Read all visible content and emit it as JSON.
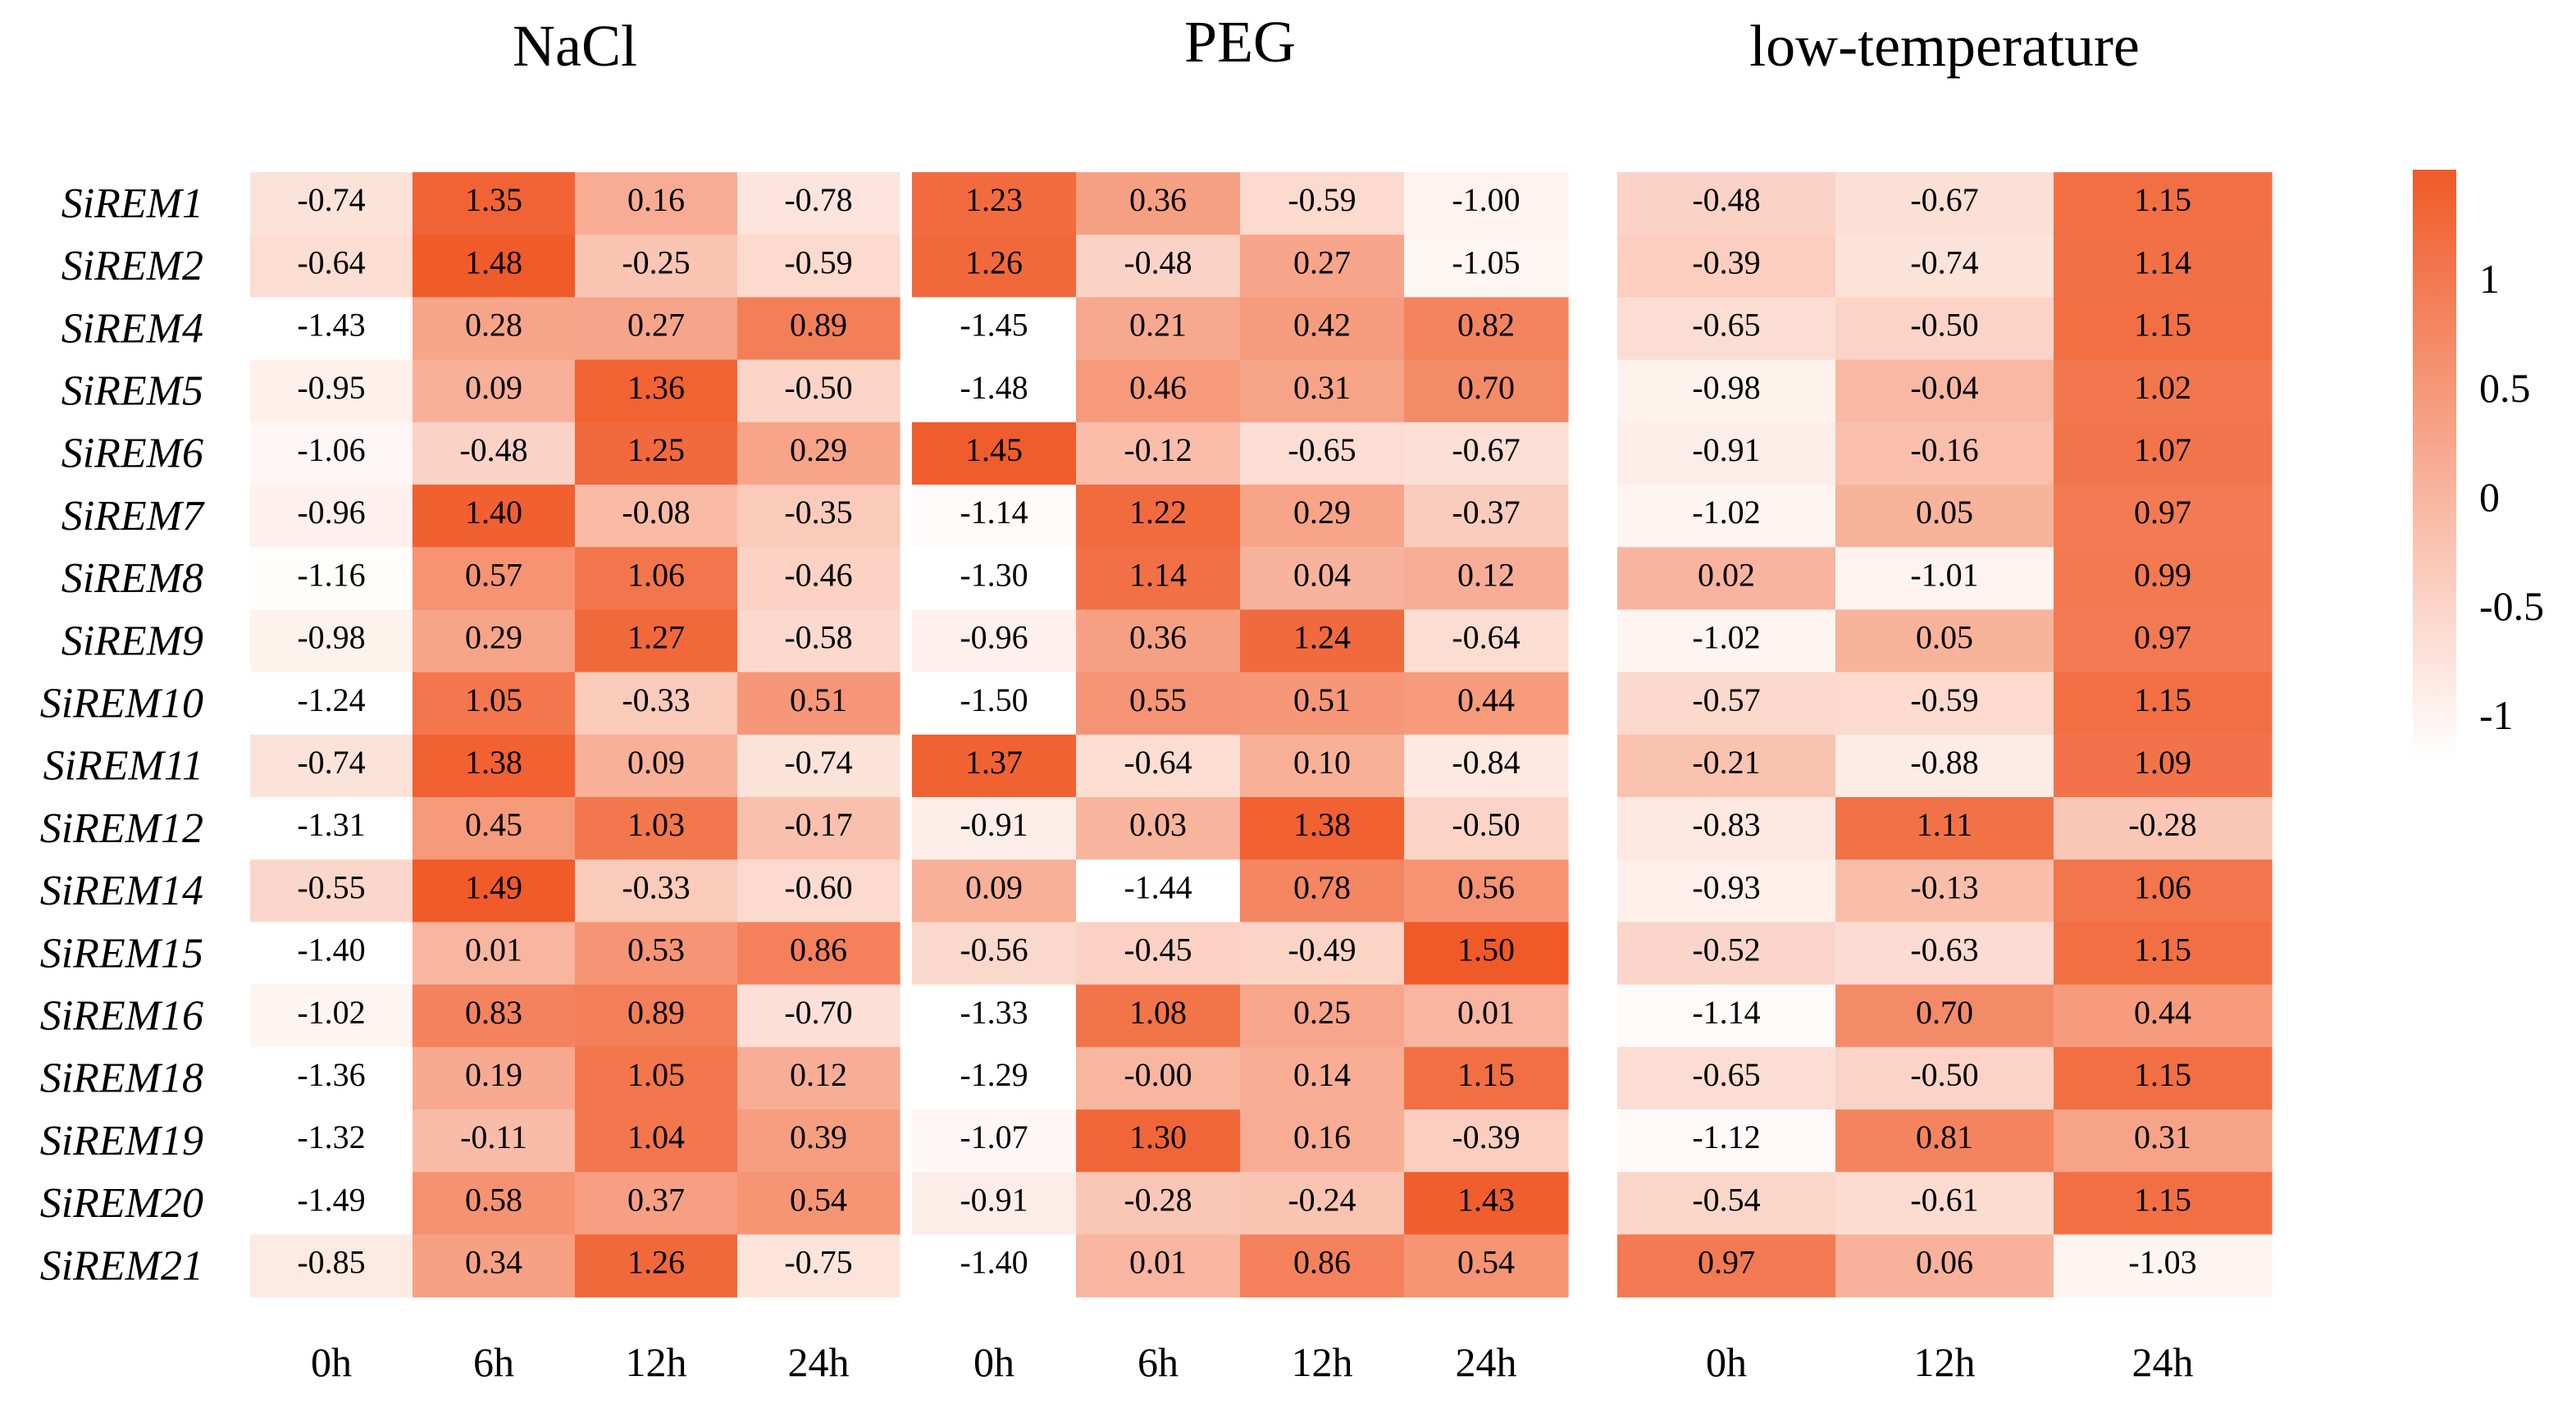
{
  "chart_data": {
    "type": "heatmap",
    "genes": [
      "SiREM1",
      "SiREM2",
      "SiREM4",
      "SiREM5",
      "SiREM6",
      "SiREM7",
      "SiREM8",
      "SiREM9",
      "SiREM10",
      "SiREM11",
      "SiREM12",
      "SiREM14",
      "SiREM15",
      "SiREM16",
      "SiREM18",
      "SiREM19",
      "SiREM20",
      "SiREM21"
    ],
    "panels": [
      {
        "title": "NaCl",
        "columns": [
          "0h",
          "6h",
          "12h",
          "24h"
        ],
        "values": [
          [
            -0.74,
            1.35,
            0.16,
            -0.78
          ],
          [
            -0.64,
            1.48,
            -0.25,
            -0.59
          ],
          [
            -1.43,
            0.28,
            0.27,
            0.89
          ],
          [
            -0.95,
            0.09,
            1.36,
            -0.5
          ],
          [
            -1.06,
            -0.48,
            1.25,
            0.29
          ],
          [
            -0.96,
            1.4,
            -0.08,
            -0.35
          ],
          [
            -1.16,
            0.57,
            1.06,
            -0.46
          ],
          [
            -0.98,
            0.29,
            1.27,
            -0.58
          ],
          [
            -1.24,
            1.05,
            -0.33,
            0.51
          ],
          [
            -0.74,
            1.38,
            0.09,
            -0.74
          ],
          [
            -1.31,
            0.45,
            1.03,
            -0.17
          ],
          [
            -0.55,
            1.49,
            -0.33,
            -0.6
          ],
          [
            -1.4,
            0.01,
            0.53,
            0.86
          ],
          [
            -1.02,
            0.83,
            0.89,
            -0.7
          ],
          [
            -1.36,
            0.19,
            1.05,
            0.12
          ],
          [
            -1.32,
            -0.11,
            1.04,
            0.39
          ],
          [
            -1.49,
            0.58,
            0.37,
            0.54
          ],
          [
            -0.85,
            0.34,
            1.26,
            -0.75
          ]
        ],
        "labels": [
          [
            "-0.74",
            "1.35",
            "0.16",
            "-0.78"
          ],
          [
            "-0.64",
            "1.48",
            "-0.25",
            "-0.59"
          ],
          [
            "-1.43",
            "0.28",
            "0.27",
            "0.89"
          ],
          [
            "-0.95",
            "0.09",
            "1.36",
            "-0.50"
          ],
          [
            "-1.06",
            "-0.48",
            "1.25",
            "0.29"
          ],
          [
            "-0.96",
            "1.40",
            "-0.08",
            "-0.35"
          ],
          [
            "-1.16",
            "0.57",
            "1.06",
            "-0.46"
          ],
          [
            "-0.98",
            "0.29",
            "1.27",
            "-0.58"
          ],
          [
            "-1.24",
            "1.05",
            "-0.33",
            "0.51"
          ],
          [
            "-0.74",
            "1.38",
            "0.09",
            "-0.74"
          ],
          [
            "-1.31",
            "0.45",
            "1.03",
            "-0.17"
          ],
          [
            "-0.55",
            "1.49",
            "-0.33",
            "-0.60"
          ],
          [
            "-1.40",
            "0.01",
            "0.53",
            "0.86"
          ],
          [
            "-1.02",
            "0.83",
            "0.89",
            "-0.70"
          ],
          [
            "-1.36",
            "0.19",
            "1.05",
            "0.12"
          ],
          [
            "-1.32",
            "-0.11",
            "1.04",
            "0.39"
          ],
          [
            "-1.49",
            "0.58",
            "0.37",
            "0.54"
          ],
          [
            "-0.85",
            "0.34",
            "1.26",
            "-0.75"
          ]
        ]
      },
      {
        "title": "PEG",
        "columns": [
          "0h",
          "6h",
          "12h",
          "24h"
        ],
        "values": [
          [
            1.23,
            0.36,
            -0.59,
            -1.0
          ],
          [
            1.26,
            -0.48,
            0.27,
            -1.05
          ],
          [
            -1.45,
            0.21,
            0.42,
            0.82
          ],
          [
            -1.48,
            0.46,
            0.31,
            0.7
          ],
          [
            1.45,
            -0.12,
            -0.65,
            -0.67
          ],
          [
            -1.14,
            1.22,
            0.29,
            -0.37
          ],
          [
            -1.3,
            1.14,
            0.04,
            0.12
          ],
          [
            -0.96,
            0.36,
            1.24,
            -0.64
          ],
          [
            -1.5,
            0.55,
            0.51,
            0.44
          ],
          [
            1.37,
            -0.64,
            0.1,
            -0.84
          ],
          [
            -0.91,
            0.03,
            1.38,
            -0.5
          ],
          [
            0.09,
            -1.44,
            0.78,
            0.56
          ],
          [
            -0.56,
            -0.45,
            -0.49,
            1.5
          ],
          [
            -1.33,
            1.08,
            0.25,
            0.01
          ],
          [
            -1.29,
            -0.0,
            0.14,
            1.15
          ],
          [
            -1.07,
            1.3,
            0.16,
            -0.39
          ],
          [
            -0.91,
            -0.28,
            -0.24,
            1.43
          ],
          [
            -1.4,
            0.01,
            0.86,
            0.54
          ]
        ],
        "labels": [
          [
            "1.23",
            "0.36",
            "-0.59",
            "-1.00"
          ],
          [
            "1.26",
            "-0.48",
            "0.27",
            "-1.05"
          ],
          [
            "-1.45",
            "0.21",
            "0.42",
            "0.82"
          ],
          [
            "-1.48",
            "0.46",
            "0.31",
            "0.70"
          ],
          [
            "1.45",
            "-0.12",
            "-0.65",
            "-0.67"
          ],
          [
            "-1.14",
            "1.22",
            "0.29",
            "-0.37"
          ],
          [
            "-1.30",
            "1.14",
            "0.04",
            "0.12"
          ],
          [
            "-0.96",
            "0.36",
            "1.24",
            "-0.64"
          ],
          [
            "-1.50",
            "0.55",
            "0.51",
            "0.44"
          ],
          [
            "1.37",
            "-0.64",
            "0.10",
            "-0.84"
          ],
          [
            "-0.91",
            "0.03",
            "1.38",
            "-0.50"
          ],
          [
            "0.09",
            "-1.44",
            "0.78",
            "0.56"
          ],
          [
            "-0.56",
            "-0.45",
            "-0.49",
            "1.50"
          ],
          [
            "-1.33",
            "1.08",
            "0.25",
            "0.01"
          ],
          [
            "-1.29",
            "-0.00",
            "0.14",
            "1.15"
          ],
          [
            "-1.07",
            "1.30",
            "0.16",
            "-0.39"
          ],
          [
            "-0.91",
            "-0.28",
            "-0.24",
            "1.43"
          ],
          [
            "-1.40",
            "0.01",
            "0.86",
            "0.54"
          ]
        ]
      },
      {
        "title": "low-temperature",
        "columns": [
          "0h",
          "12h",
          "24h"
        ],
        "values": [
          [
            -0.48,
            -0.67,
            1.15
          ],
          [
            -0.39,
            -0.74,
            1.14
          ],
          [
            -0.65,
            -0.5,
            1.15
          ],
          [
            -0.98,
            -0.04,
            1.02
          ],
          [
            -0.91,
            -0.16,
            1.07
          ],
          [
            -1.02,
            0.05,
            0.97
          ],
          [
            0.02,
            -1.01,
            0.99
          ],
          [
            -1.02,
            0.05,
            0.97
          ],
          [
            -0.57,
            -0.59,
            1.15
          ],
          [
            -0.21,
            -0.88,
            1.09
          ],
          [
            -0.83,
            1.11,
            -0.28
          ],
          [
            -0.93,
            -0.13,
            1.06
          ],
          [
            -0.52,
            -0.63,
            1.15
          ],
          [
            -1.14,
            0.7,
            0.44
          ],
          [
            -0.65,
            -0.5,
            1.15
          ],
          [
            -1.12,
            0.81,
            0.31
          ],
          [
            -0.54,
            -0.61,
            1.15
          ],
          [
            0.97,
            0.06,
            -1.03
          ]
        ],
        "labels": [
          [
            "-0.48",
            "-0.67",
            "1.15"
          ],
          [
            "-0.39",
            "-0.74",
            "1.14"
          ],
          [
            "-0.65",
            "-0.50",
            "1.15"
          ],
          [
            "-0.98",
            "-0.04",
            "1.02"
          ],
          [
            "-0.91",
            "-0.16",
            "1.07"
          ],
          [
            "-1.02",
            "0.05",
            "0.97"
          ],
          [
            "0.02",
            "-1.01",
            "0.99"
          ],
          [
            "-1.02",
            "0.05",
            "0.97"
          ],
          [
            "-0.57",
            "-0.59",
            "1.15"
          ],
          [
            "-0.21",
            "-0.88",
            "1.09"
          ],
          [
            "-0.83",
            "1.11",
            "-0.28"
          ],
          [
            "-0.93",
            "-0.13",
            "1.06"
          ],
          [
            "-0.52",
            "-0.63",
            "1.15"
          ],
          [
            "-1.14",
            "0.70",
            "0.44"
          ],
          [
            "-0.65",
            "-0.50",
            "1.15"
          ],
          [
            "-1.12",
            "0.81",
            "0.31"
          ],
          [
            "-0.54",
            "-0.61",
            "1.15"
          ],
          [
            "0.97",
            "0.06",
            "-1.03"
          ]
        ]
      }
    ],
    "colorbar": {
      "ticks": [
        "1",
        "0.5",
        "0",
        "-0.5",
        "-1"
      ],
      "tick_values": [
        1,
        0.5,
        0,
        -0.5,
        -1
      ],
      "range": [
        -1.2,
        1.5
      ],
      "low_color": "#ffffff",
      "high_color": "#f05a28"
    },
    "legend_placement": "right",
    "grid": false
  }
}
